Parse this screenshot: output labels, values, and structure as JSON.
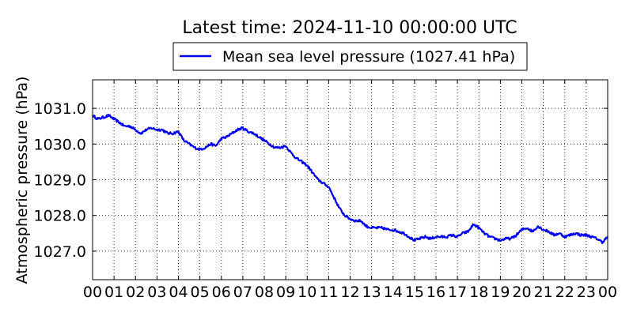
{
  "chart_data": {
    "type": "line",
    "title": "Latest time: 2024-11-10 00:00:00 UTC",
    "xlabel": "",
    "ylabel": "Atmospheric pressure (hPa)",
    "xlim": [
      0,
      24
    ],
    "ylim": [
      1026.2,
      1031.8
    ],
    "grid": true,
    "legend_position": "top-center",
    "x_tick_labels": [
      "00",
      "01",
      "02",
      "03",
      "04",
      "05",
      "06",
      "07",
      "08",
      "09",
      "10",
      "11",
      "12",
      "13",
      "14",
      "15",
      "16",
      "17",
      "18",
      "19",
      "20",
      "21",
      "22",
      "23",
      "00"
    ],
    "y_ticks": [
      1027.0,
      1028.0,
      1029.0,
      1030.0,
      1031.0
    ],
    "y_tick_labels": [
      "1027.0",
      "1028.0",
      "1029.0",
      "1030.0",
      "1031.0"
    ],
    "series": [
      {
        "name": "Mean sea level pressure (1027.41 hPa)",
        "color": "#0000ee",
        "x": [
          0.0,
          0.25,
          0.5,
          0.75,
          1.0,
          1.25,
          1.5,
          1.75,
          2.0,
          2.25,
          2.5,
          2.75,
          3.0,
          3.25,
          3.5,
          3.75,
          4.0,
          4.25,
          4.5,
          4.75,
          5.0,
          5.25,
          5.5,
          5.75,
          6.0,
          6.25,
          6.5,
          6.75,
          7.0,
          7.25,
          7.5,
          7.75,
          8.0,
          8.25,
          8.5,
          8.75,
          9.0,
          9.25,
          9.5,
          9.75,
          10.0,
          10.25,
          10.5,
          10.75,
          11.0,
          11.25,
          11.5,
          11.75,
          12.0,
          12.25,
          12.5,
          12.75,
          13.0,
          13.25,
          13.5,
          13.75,
          14.0,
          14.25,
          14.5,
          14.75,
          15.0,
          15.25,
          15.5,
          15.75,
          16.0,
          16.25,
          16.5,
          16.75,
          17.0,
          17.25,
          17.5,
          17.75,
          18.0,
          18.25,
          18.5,
          18.75,
          19.0,
          19.25,
          19.5,
          19.75,
          20.0,
          20.25,
          20.5,
          20.75,
          21.0,
          21.25,
          21.5,
          21.75,
          22.0,
          22.25,
          22.5,
          22.75,
          23.0,
          23.25,
          23.5,
          23.75,
          24.0
        ],
        "y": [
          1030.8,
          1030.7,
          1030.75,
          1030.8,
          1030.7,
          1030.6,
          1030.5,
          1030.5,
          1030.4,
          1030.3,
          1030.4,
          1030.45,
          1030.4,
          1030.4,
          1030.3,
          1030.3,
          1030.35,
          1030.1,
          1030.0,
          1029.9,
          1029.85,
          1029.9,
          1030.0,
          1029.95,
          1030.15,
          1030.2,
          1030.3,
          1030.4,
          1030.45,
          1030.35,
          1030.3,
          1030.2,
          1030.1,
          1030.0,
          1029.9,
          1029.9,
          1029.95,
          1029.75,
          1029.6,
          1029.5,
          1029.4,
          1029.2,
          1029.0,
          1028.9,
          1028.8,
          1028.5,
          1028.2,
          1028.0,
          1027.9,
          1027.85,
          1027.85,
          1027.7,
          1027.65,
          1027.65,
          1027.65,
          1027.6,
          1027.6,
          1027.55,
          1027.5,
          1027.4,
          1027.3,
          1027.35,
          1027.4,
          1027.35,
          1027.4,
          1027.4,
          1027.4,
          1027.45,
          1027.4,
          1027.5,
          1027.55,
          1027.75,
          1027.65,
          1027.5,
          1027.4,
          1027.35,
          1027.3,
          1027.35,
          1027.35,
          1027.45,
          1027.6,
          1027.65,
          1027.55,
          1027.7,
          1027.6,
          1027.55,
          1027.45,
          1027.5,
          1027.4,
          1027.45,
          1027.5,
          1027.45,
          1027.45,
          1027.4,
          1027.35,
          1027.25,
          1027.4
        ]
      }
    ]
  }
}
